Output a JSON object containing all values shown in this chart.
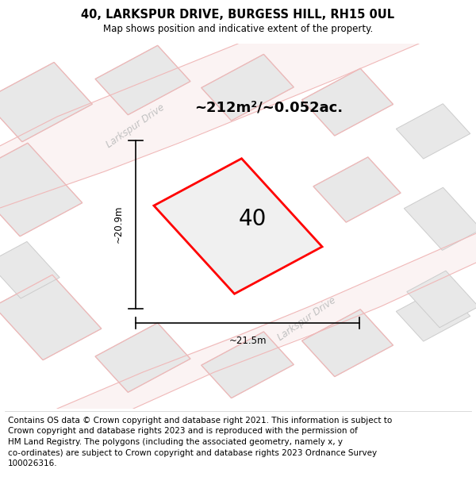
{
  "title": "40, LARKSPUR DRIVE, BURGESS HILL, RH15 0UL",
  "subtitle": "Map shows position and indicative extent of the property.",
  "footer": "Contains OS data © Crown copyright and database right 2021. This information is subject to\nCrown copyright and database rights 2023 and is reproduced with the permission of\nHM Land Registry. The polygons (including the associated geometry, namely x, y\nco-ordinates) are subject to Crown copyright and database rights 2023 Ordnance Survey\n100026316.",
  "area_text": "~212m²/~0.052ac.",
  "label_number": "40",
  "dim_width": "~21.5m",
  "dim_height": "~20.9m",
  "road_label_1": "Larkspur Drive",
  "road_label_2": "Larkspur Drive",
  "map_bg": "#ffffff",
  "block_fill": "#e8e8e8",
  "block_edge": "#cccccc",
  "road_edge_color": "#f0b8b8",
  "plot_fill": "#f0f0f0",
  "plot_edge": "#ff0000",
  "title_fontsize": 10.5,
  "subtitle_fontsize": 8.5,
  "footer_fontsize": 7.5,
  "area_fontsize": 13,
  "number_fontsize": 20,
  "dim_fontsize": 8.5,
  "road_fontsize": 8.5
}
